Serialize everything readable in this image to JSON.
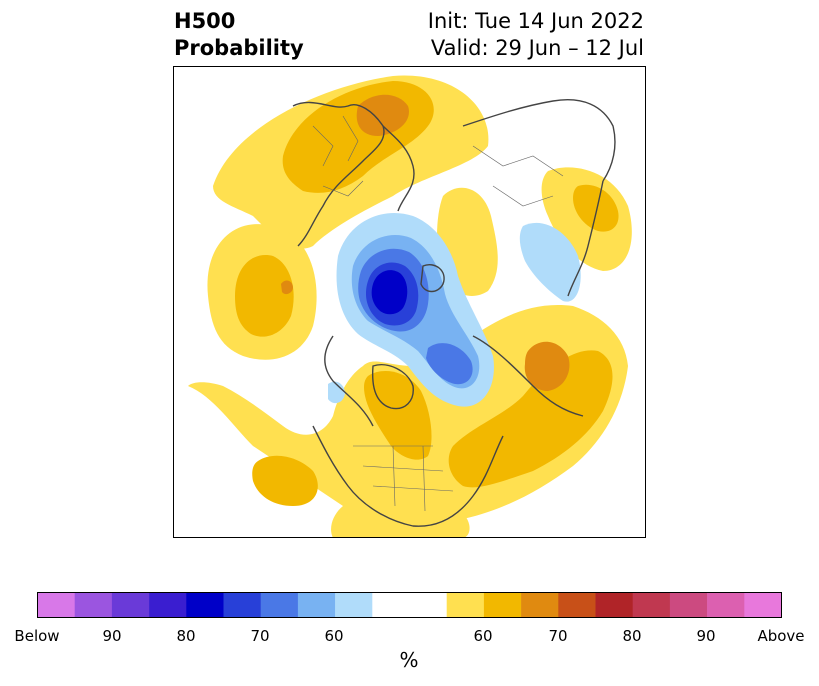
{
  "title": {
    "left_line1": "H500",
    "left_line2": "Probability",
    "right_line1": "Init: Tue 14 Jun 2022",
    "right_line2": "Valid: 29 Jun – 12 Jul"
  },
  "colorbar": {
    "units": "%",
    "labels": [
      "Below",
      "90",
      "80",
      "70",
      "60",
      "60",
      "70",
      "80",
      "90",
      "Above"
    ],
    "colors": [
      "#d878e8",
      "#9b55e0",
      "#6a3ad8",
      "#3a1ed0",
      "#0000c8",
      "#2840d8",
      "#4a78e6",
      "#78b2f2",
      "#b0dcfa",
      "#ffffff",
      "#ffe050",
      "#f2b800",
      "#e08a10",
      "#c85018",
      "#b02428",
      "#c03850",
      "#cc4a80",
      "#dc60b0",
      "#e878dc"
    ]
  },
  "colors": {
    "frame": "#000000",
    "coast": "#444444"
  }
}
